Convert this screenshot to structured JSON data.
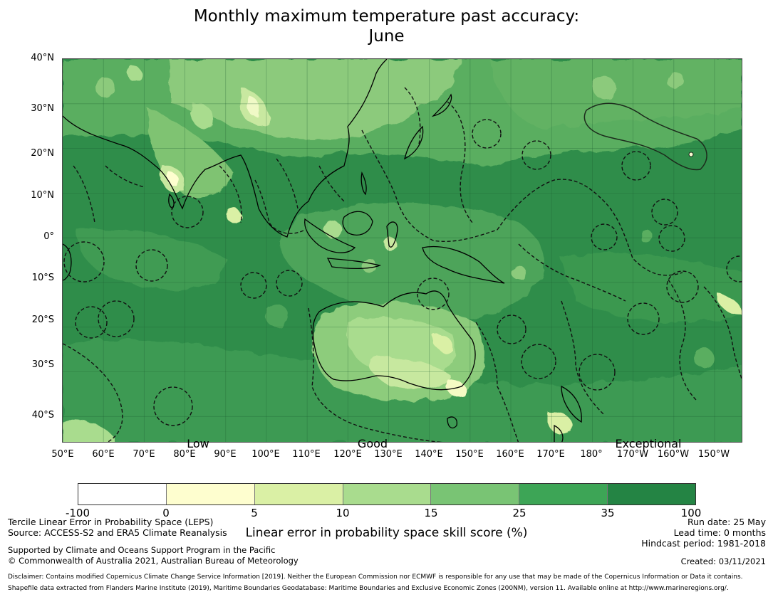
{
  "title": {
    "line1": "Monthly maximum temperature past accuracy:",
    "line2": "June"
  },
  "map": {
    "lat_labels": [
      "40°N",
      "30°N",
      "20°N",
      "10°N",
      "0°",
      "10°S",
      "20°S",
      "30°S",
      "40°S"
    ],
    "lon_labels": [
      "50°E",
      "60°E",
      "70°E",
      "80°E",
      "90°E",
      "100°E",
      "110°E",
      "120°E",
      "130°E",
      "140°E",
      "150°E",
      "160°E",
      "170°E",
      "180°",
      "170°W",
      "160°W",
      "150°W"
    ],
    "category_labels": {
      "low": "Low",
      "good": "Good",
      "exceptional": "Exceptional"
    },
    "lat_range": [
      -46,
      40
    ],
    "lon_range": [
      50,
      217
    ],
    "colors": {
      "ocean_dark": "#248444",
      "mid": "#45a458",
      "light_green": "#7ac474",
      "pale": "#a9dc8e",
      "cream": "#fefecf",
      "border_dash": "#111111"
    }
  },
  "colorbar": {
    "ticks": [
      "-100",
      "0",
      "5",
      "10",
      "15",
      "25",
      "35",
      "100"
    ],
    "colors": [
      "#ffffff",
      "#fefecf",
      "#daf0a5",
      "#a9dc8e",
      "#79c474",
      "#3da556",
      "#248444"
    ],
    "label": "Linear error in probability space skill score (%)"
  },
  "footer": {
    "left1": "Tercile Linear Error in Probability Space (LEPS)",
    "left2": "Source: ACCESS-S2 and ERA5 Climate Reanalysis",
    "left3": "Supported by Climate and Oceans Support Program in the Pacific",
    "left4": "© Commonwealth of Australia 2021, Australian Bureau of Meteorology",
    "right1": "Run date: 25 May",
    "right2": "Lead time: 0 months",
    "right3": "Hindcast period: 1981-2018",
    "right4": "Created: 03/11/2021",
    "disclaimer1": "Disclaimer: Contains modified Copernicus Climate Change Service Information [2019]. Neither the European Commission nor ECMWF is responsible for any use that may be made of the Copernicus Information or Data it contains.",
    "disclaimer2": "Shapefile data extracted from Flanders Marine Institute (2019), Maritime Boundaries Geodatabase: Maritime Boundaries and Exclusive Economic Zones (200NM), version 11. Available online at http://www.marineregions.org/."
  }
}
